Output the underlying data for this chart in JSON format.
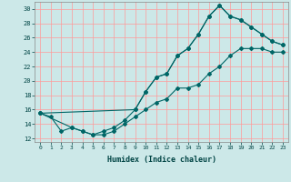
{
  "xlabel": "Humidex (Indice chaleur)",
  "xlim": [
    -0.5,
    23.5
  ],
  "ylim": [
    11.5,
    31
  ],
  "xticks": [
    0,
    1,
    2,
    3,
    4,
    5,
    6,
    7,
    8,
    9,
    10,
    11,
    12,
    13,
    14,
    15,
    16,
    17,
    18,
    19,
    20,
    21,
    22,
    23
  ],
  "yticks": [
    12,
    14,
    16,
    18,
    20,
    22,
    24,
    26,
    28,
    30
  ],
  "bg_color": "#cce8e8",
  "grid_color": "#ff9999",
  "line_color": "#006666",
  "line1_x": [
    0,
    1,
    2,
    3,
    4,
    5,
    6,
    7,
    8,
    9,
    10,
    11,
    12,
    13,
    14,
    15,
    16,
    17,
    18,
    19,
    20,
    21,
    22,
    23
  ],
  "line1_y": [
    15.5,
    15.0,
    13.0,
    13.5,
    13.0,
    12.5,
    12.5,
    13.0,
    14.0,
    15.0,
    16.0,
    17.0,
    17.5,
    19.0,
    19.0,
    19.5,
    21.0,
    22.0,
    23.5,
    24.5,
    24.5,
    24.5,
    24.0,
    24.0
  ],
  "line2_x": [
    0,
    3,
    4,
    5,
    6,
    7,
    8,
    9,
    10,
    11,
    12,
    13,
    14,
    15,
    16,
    17,
    18,
    19,
    20,
    21,
    22,
    23
  ],
  "line2_y": [
    15.5,
    13.5,
    13.0,
    12.5,
    13.0,
    13.5,
    14.5,
    16.0,
    18.5,
    20.5,
    21.0,
    23.5,
    24.5,
    26.5,
    29.0,
    30.5,
    29.0,
    28.5,
    27.5,
    26.5,
    25.5,
    25.0
  ],
  "line3_x": [
    0,
    9,
    10,
    11,
    12,
    13,
    14,
    15,
    16,
    17,
    18,
    19,
    20,
    21,
    22,
    23
  ],
  "line3_y": [
    15.5,
    16.0,
    18.5,
    20.5,
    21.0,
    23.5,
    24.5,
    26.5,
    29.0,
    30.5,
    29.0,
    28.5,
    27.5,
    26.5,
    25.5,
    25.0
  ]
}
